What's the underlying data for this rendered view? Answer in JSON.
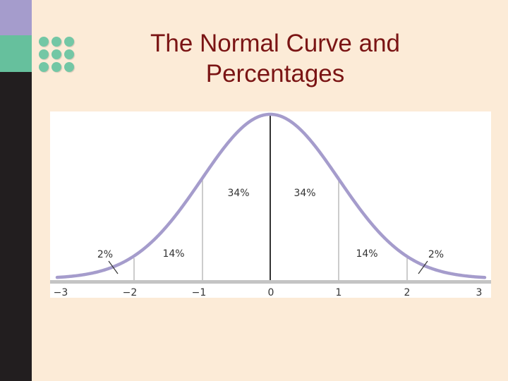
{
  "slide": {
    "title_line1": "The Normal Curve and",
    "title_line2": "Percentages"
  },
  "colors": {
    "background": "#fcebd7",
    "title": "#7a1414",
    "sidebar_dark": "#221e1f",
    "sidebar_purple": "#a59ccc",
    "sidebar_green": "#66c09d",
    "dots": "#73c7a5",
    "curve": "#a59ccc",
    "axis": "#bbbbbb"
  },
  "diagram": {
    "x_ticks": [
      "−3",
      "−2",
      "−1",
      "0",
      "1",
      "2",
      "3"
    ],
    "areas": {
      "left_outer": "2%",
      "left_mid": "14%",
      "left_inner": "34%",
      "right_inner": "34%",
      "right_mid": "14%",
      "right_outer": "2%"
    }
  }
}
